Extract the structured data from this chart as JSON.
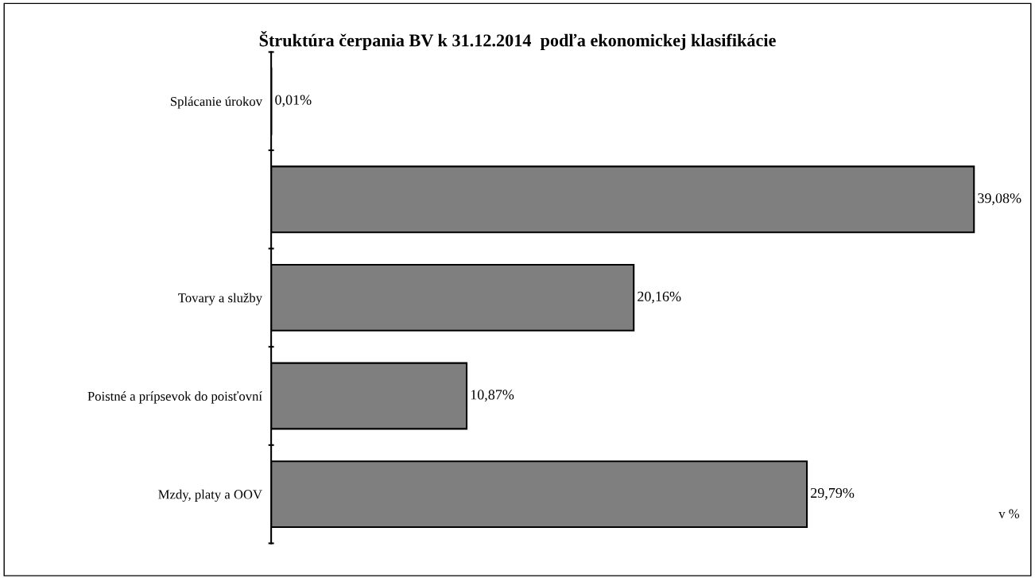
{
  "chart_data": {
    "type": "bar",
    "orientation": "horizontal",
    "title": "Štruktúra čerpania BV k 31.12.2014  podľa ekonomickej klasifikácie",
    "categories": [
      "Splácanie úrokov",
      null,
      "Tovary a služby",
      "Poistné a prípsevok do poisťovní",
      "Mzdy, platy a OOV"
    ],
    "values": [
      0.01,
      39.08,
      20.16,
      10.87,
      29.79
    ],
    "value_labels": [
      "0,01%",
      "39,08%",
      "20,16%",
      "10,87%",
      "29,79%"
    ],
    "color": "#7f7f7f",
    "xlabel": "v %",
    "tick_labels": "y",
    "grid": false
  }
}
